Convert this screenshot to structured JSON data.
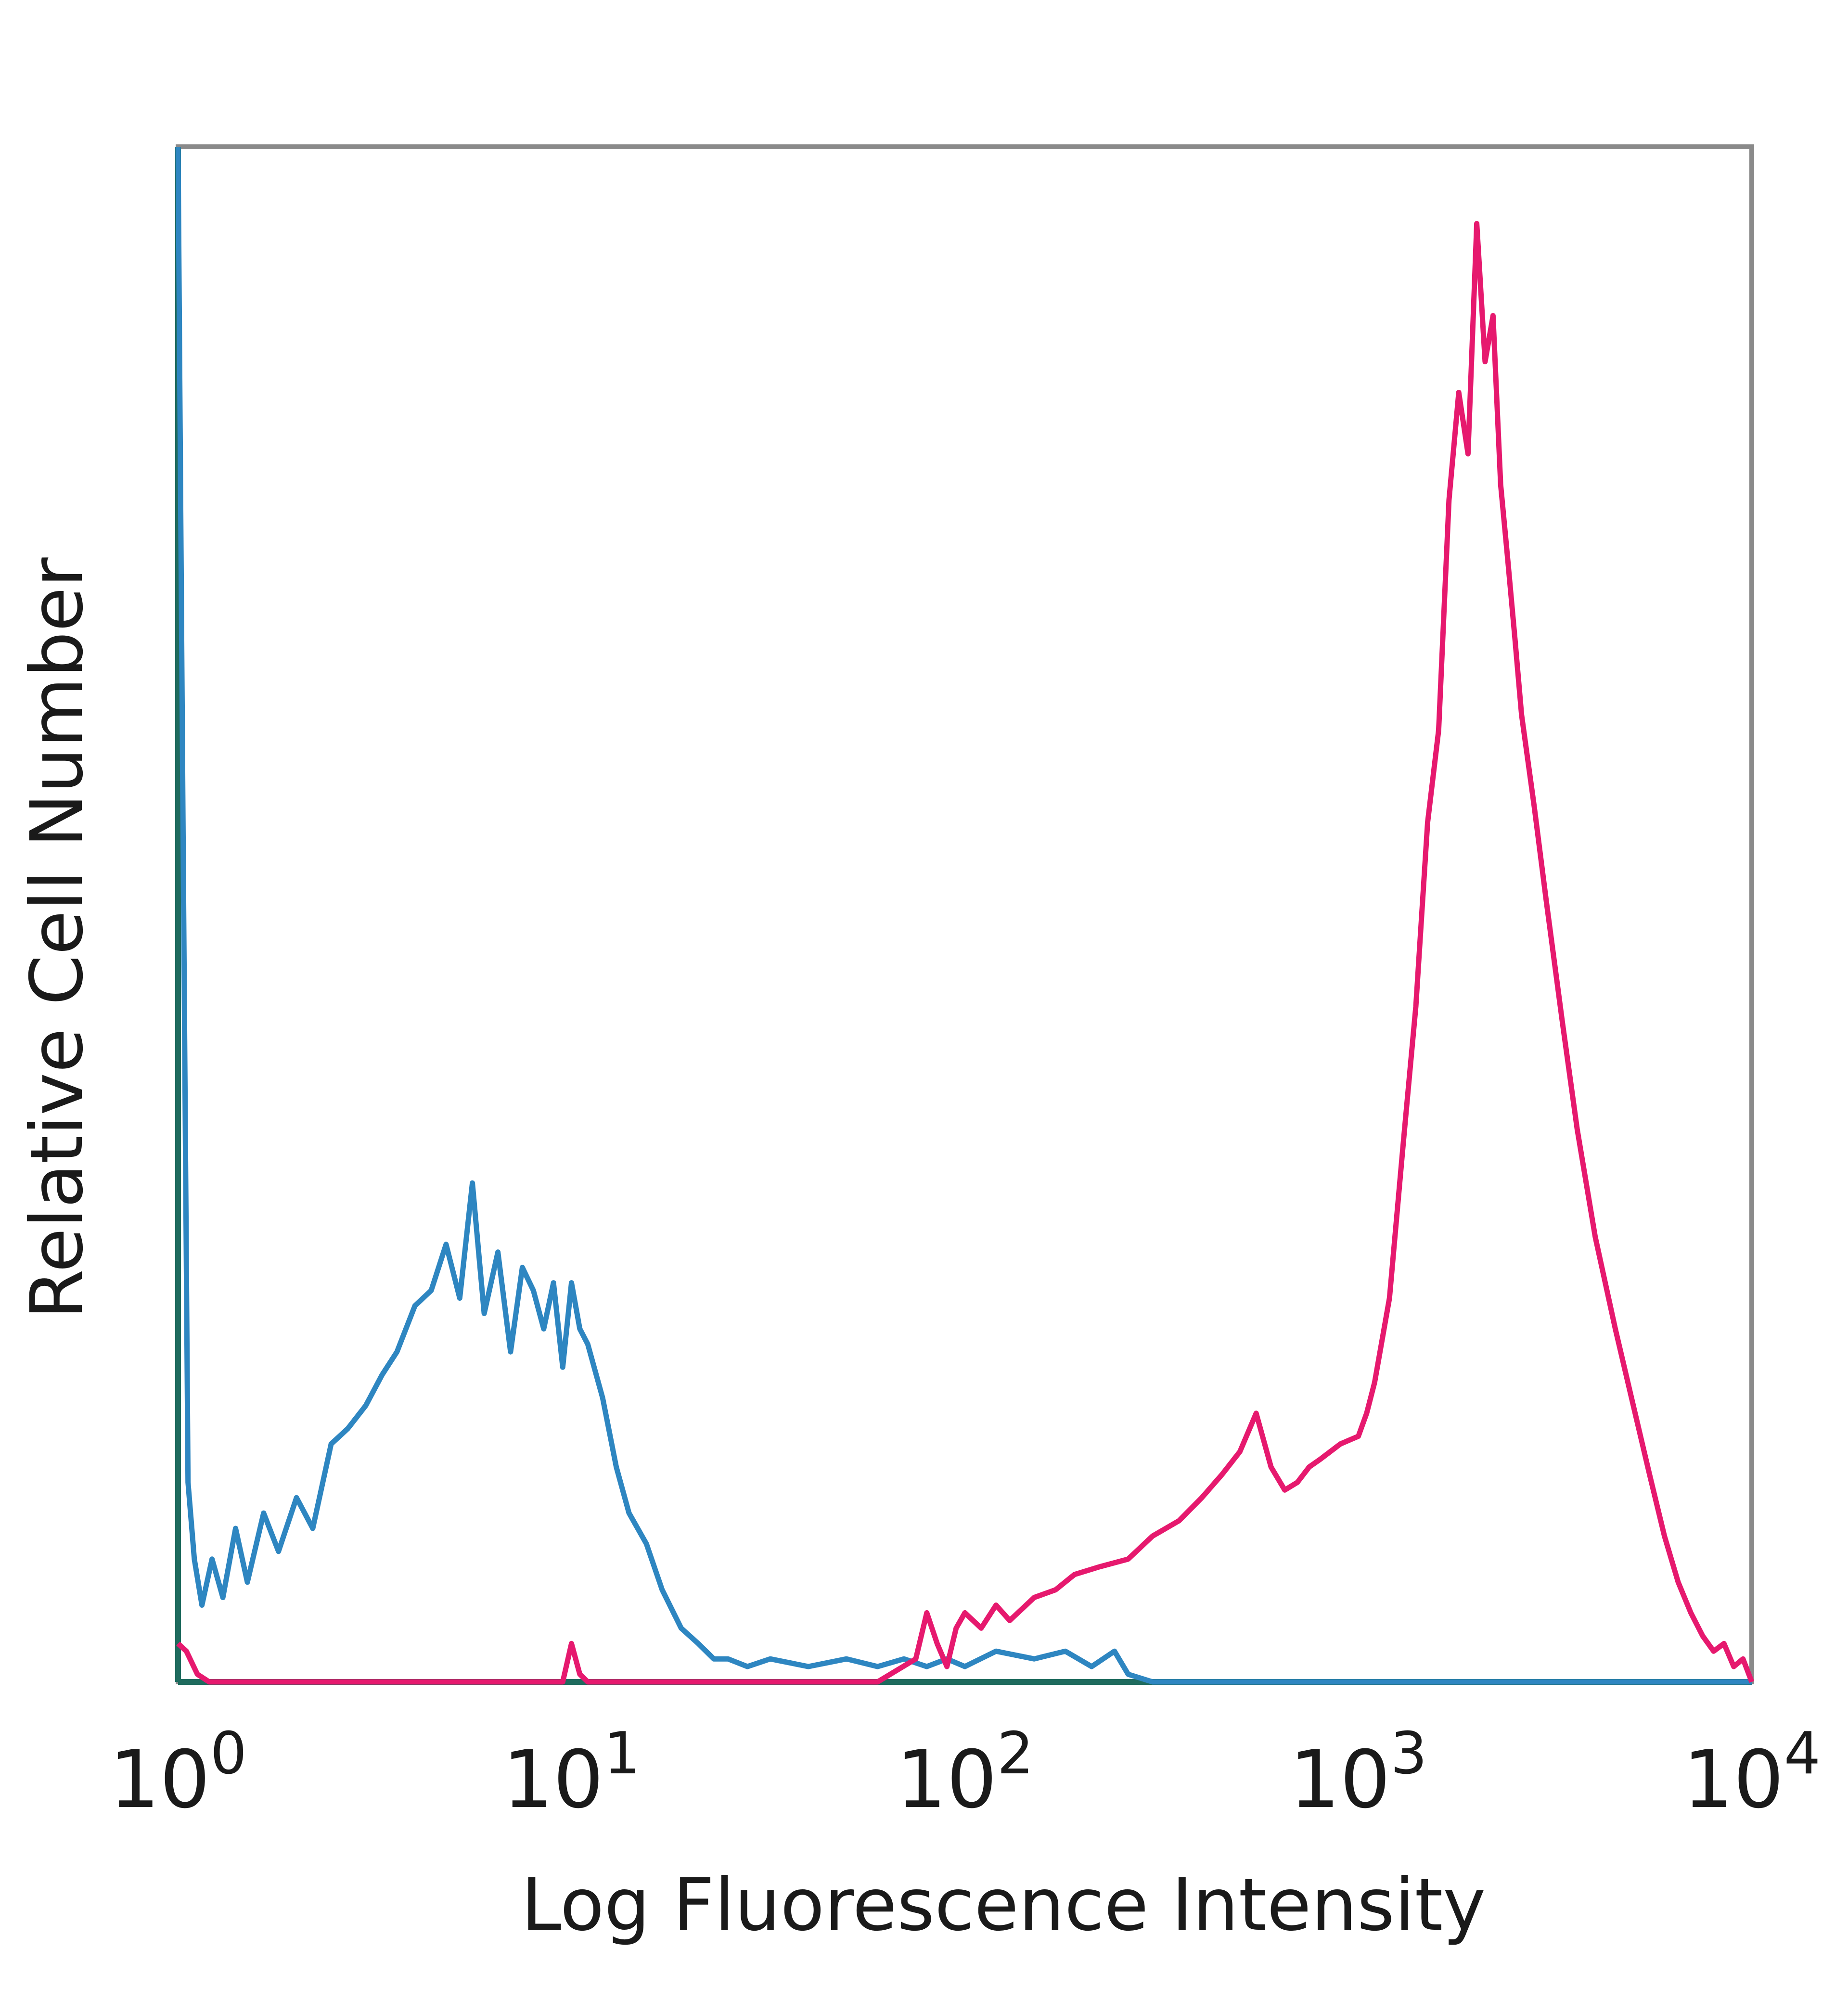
{
  "chart_data": {
    "type": "line",
    "title": "",
    "xlabel": "Log Fluorescence Intensity",
    "ylabel": "Relative Cell Number",
    "x_scale": "log",
    "xlim": [
      1,
      10000
    ],
    "ylim": [
      0,
      100
    ],
    "grid": false,
    "legend": "none",
    "x_ticks": [
      {
        "value": 1,
        "base": "10",
        "exp": "0"
      },
      {
        "value": 10,
        "base": "10",
        "exp": "1"
      },
      {
        "value": 100,
        "base": "10",
        "exp": "2"
      },
      {
        "value": 1000,
        "base": "10",
        "exp": "3"
      },
      {
        "value": 10000,
        "base": "10",
        "exp": "4"
      }
    ],
    "series": [
      {
        "color": "#2e86c1",
        "x": [
          1.0,
          1.03,
          1.06,
          1.1,
          1.15,
          1.22,
          1.3,
          1.4,
          1.5,
          1.65,
          1.8,
          2.0,
          2.2,
          2.45,
          2.7,
          3.0,
          3.3,
          3.6,
          4.0,
          4.4,
          4.8,
          5.2,
          5.6,
          6.0,
          6.5,
          7.0,
          7.5,
          8.0,
          8.5,
          9.0,
          9.5,
          10.0,
          10.5,
          11.0,
          12.0,
          13.0,
          14.0,
          15.5,
          17.0,
          19.0,
          21.0,
          23.0,
          25.0,
          28.0,
          32.0,
          40.0,
          50.0,
          60.0,
          70.0,
          80.0,
          90.0,
          100.0,
          120.0,
          150.0,
          180.0,
          210.0,
          240.0,
          260.0,
          300.0,
          500.0,
          1000.0,
          3000.0,
          10000.0
        ],
        "y": [
          100.0,
          55.0,
          13.0,
          8.0,
          5.0,
          8.0,
          5.5,
          10.0,
          6.5,
          11.0,
          8.5,
          12.0,
          10.0,
          15.5,
          16.5,
          18.0,
          20.0,
          21.5,
          24.5,
          25.5,
          28.5,
          25.0,
          32.5,
          24.0,
          28.0,
          21.5,
          27.0,
          25.5,
          23.0,
          26.0,
          20.5,
          26.0,
          23.0,
          22.0,
          18.5,
          14.0,
          11.0,
          9.0,
          6.0,
          3.5,
          2.5,
          1.5,
          1.5,
          1.0,
          1.5,
          1.0,
          1.5,
          1.0,
          1.5,
          1.0,
          1.5,
          1.0,
          2.0,
          1.5,
          2.0,
          1.0,
          2.0,
          0.5,
          0.0,
          0.0,
          0.0,
          0.0,
          0.0
        ]
      },
      {
        "color": "#e6196e",
        "x": [
          1.0,
          1.05,
          1.12,
          1.2,
          2.0,
          5.0,
          9.5,
          10.0,
          10.5,
          11.0,
          15.0,
          30.0,
          60.0,
          75.0,
          80.0,
          85.0,
          90.0,
          95.0,
          100.0,
          110.0,
          120.0,
          130.0,
          150.0,
          170.0,
          190.0,
          220.0,
          260.0,
          300.0,
          350.0,
          400.0,
          450.0,
          500.0,
          550.0,
          600.0,
          650.0,
          700.0,
          750.0,
          800.0,
          900.0,
          1000.0,
          1050.0,
          1100.0,
          1200.0,
          1300.0,
          1400.0,
          1500.0,
          1600.0,
          1700.0,
          1800.0,
          1900.0,
          2000.0,
          2100.0,
          2200.0,
          2300.0,
          2400.0,
          2500.0,
          2600.0,
          2800.0,
          3000.0,
          3300.0,
          3600.0,
          4000.0,
          4500.0,
          5000.0,
          5500.0,
          6000.0,
          6500.0,
          7000.0,
          7500.0,
          8000.0,
          8500.0,
          9000.0,
          9500.0,
          10000.0
        ],
        "y": [
          2.5,
          2.0,
          0.5,
          0.0,
          0.0,
          0.0,
          0.0,
          2.5,
          0.5,
          0.0,
          0.0,
          0.0,
          0.0,
          1.5,
          4.5,
          2.5,
          1.0,
          3.5,
          4.5,
          3.5,
          5.0,
          4.0,
          5.5,
          6.0,
          7.0,
          7.5,
          8.0,
          9.5,
          10.5,
          12.0,
          13.5,
          15.0,
          17.5,
          14.0,
          12.5,
          13.0,
          14.0,
          14.5,
          15.5,
          16.0,
          17.5,
          19.5,
          25.0,
          35.0,
          44.0,
          56.0,
          62.0,
          77.0,
          84.0,
          80.0,
          95.0,
          86.0,
          89.0,
          78.0,
          73.0,
          68.0,
          63.0,
          57.0,
          51.0,
          43.0,
          36.0,
          29.0,
          23.0,
          18.0,
          13.5,
          9.5,
          6.5,
          4.5,
          3.0,
          2.0,
          2.5,
          1.0,
          1.5,
          0.0
        ]
      }
    ]
  }
}
